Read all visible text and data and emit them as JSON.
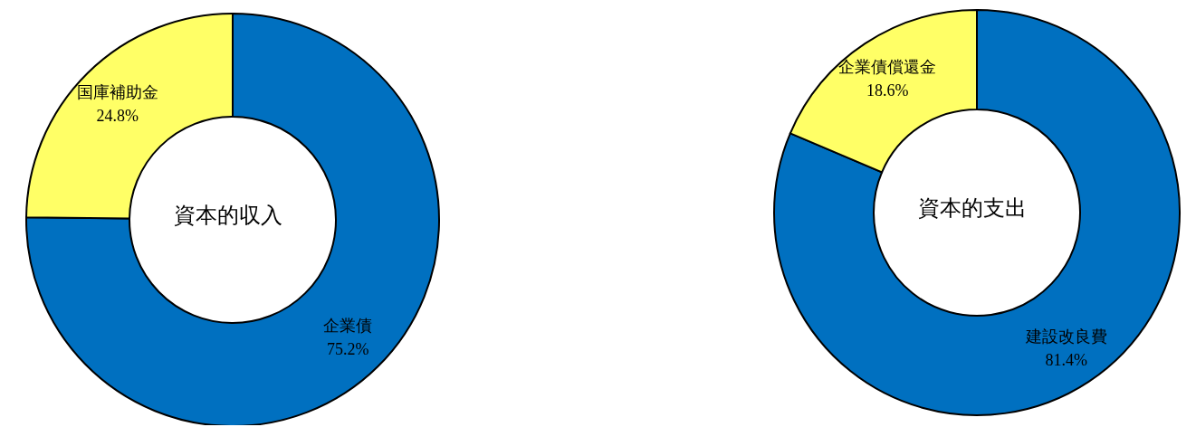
{
  "chart_data": [
    {
      "type": "donut",
      "title": "資本的収入",
      "categories": [
        "企業債",
        "国庫補助金"
      ],
      "values": [
        75.2,
        24.8
      ],
      "colors": [
        "#0070c0",
        "#ffff66"
      ],
      "value_labels": [
        "75.2%",
        "24.8%"
      ]
    },
    {
      "type": "donut",
      "title": "資本的支出",
      "categories": [
        "建設改良費",
        "企業債償還金"
      ],
      "values": [
        81.4,
        18.6
      ],
      "colors": [
        "#0070c0",
        "#ffff66"
      ],
      "value_labels": [
        "81.4%",
        "18.6%"
      ]
    }
  ]
}
